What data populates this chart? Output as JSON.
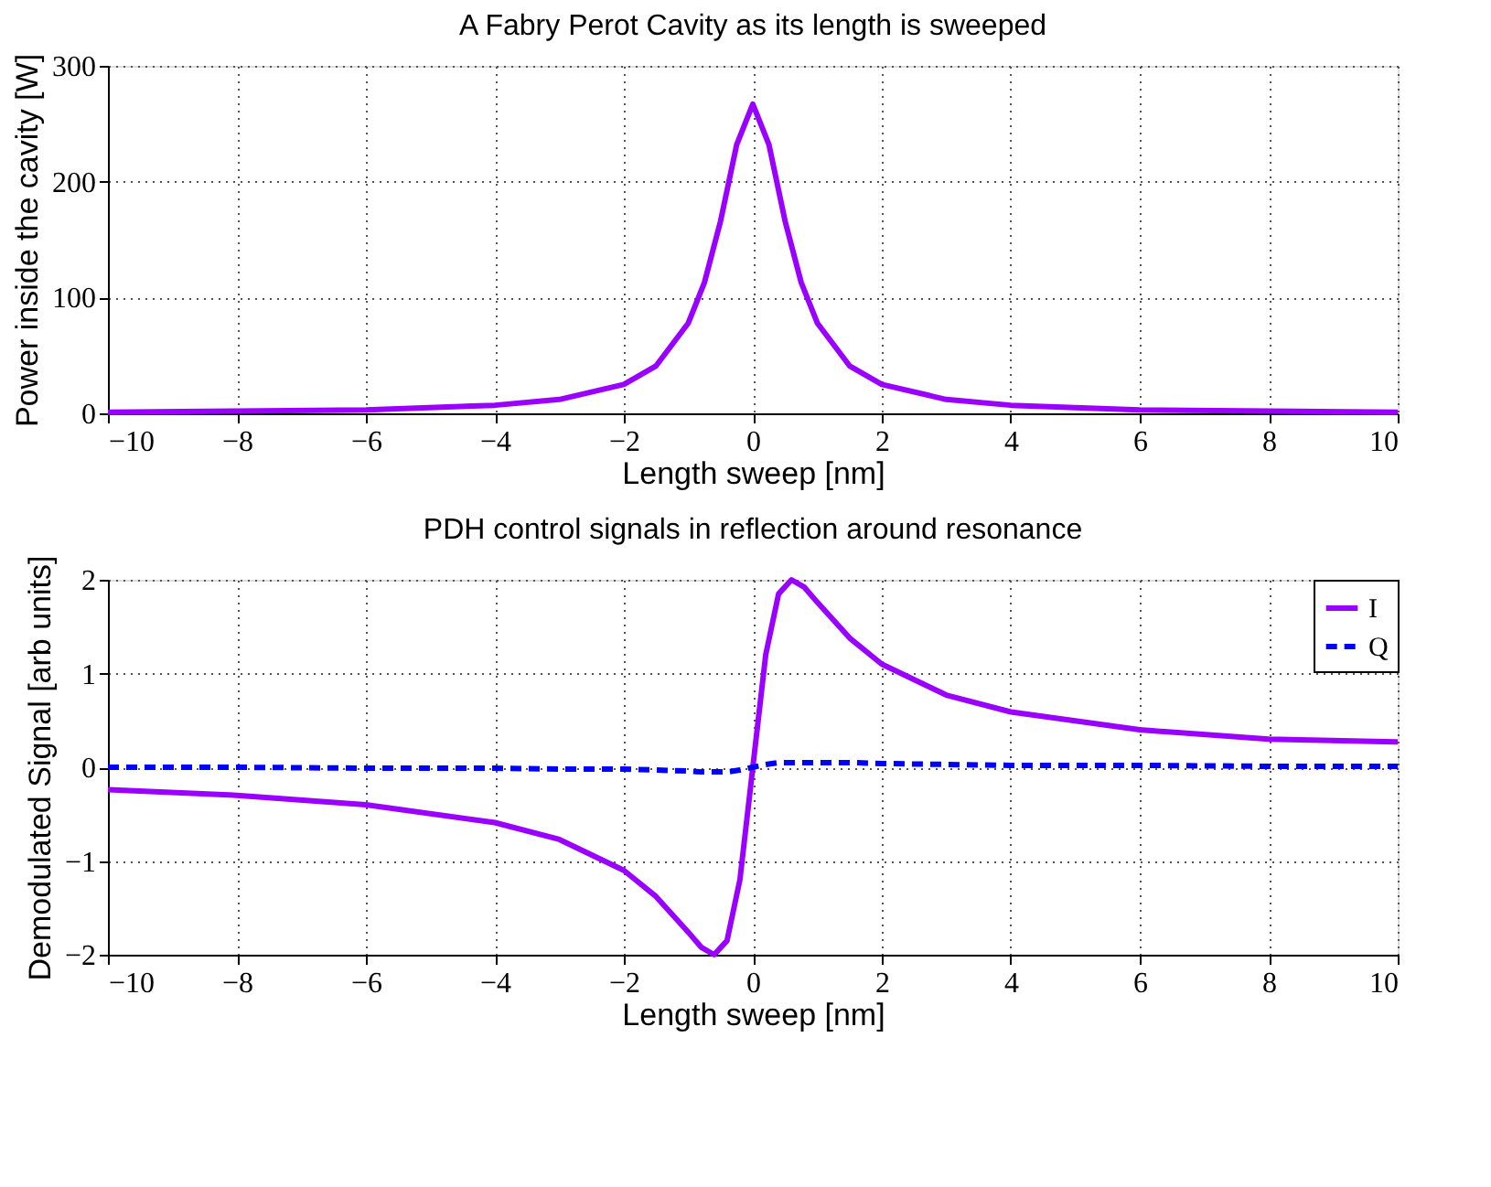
{
  "chart_data": [
    {
      "type": "line",
      "title": "A Fabry Perot Cavity as its length is sweeped",
      "xlabel": "Length sweep [nm]",
      "ylabel": "Power inside the cavity [W]",
      "x": [
        -10,
        -8,
        -6,
        -4,
        -3,
        -2,
        -1.5,
        -1,
        -0.75,
        -0.5,
        -0.25,
        0,
        0.25,
        0.5,
        0.75,
        1,
        1.5,
        2,
        3,
        4,
        6,
        8,
        10
      ],
      "series": [
        {
          "color": "#9900ff",
          "values": [
            1,
            2,
            3,
            7,
            12,
            25,
            41,
            78,
            113,
            166,
            232,
            267,
            232,
            166,
            113,
            78,
            41,
            25,
            12,
            7,
            3,
            2,
            1
          ]
        }
      ],
      "xlim": [
        -10,
        10
      ],
      "xticks": [
        -10,
        -8,
        -6,
        -4,
        -2,
        0,
        2,
        4,
        6,
        8,
        10
      ],
      "ylim": [
        0,
        300
      ],
      "yticks": [
        0,
        100,
        200,
        300
      ],
      "grid": true,
      "legend": false,
      "line_style": "solid",
      "marker": "none"
    },
    {
      "type": "line",
      "title": "PDH control signals in reflection around resonance",
      "xlabel": "Length sweep [nm]",
      "ylabel": "Demodulated Signal [arb units]",
      "x": [
        -10,
        -8,
        -6,
        -4,
        -3,
        -2,
        -1.5,
        -1,
        -0.8,
        -0.6,
        -0.4,
        -0.2,
        0,
        0.2,
        0.4,
        0.6,
        0.8,
        1,
        1.5,
        2,
        3,
        4,
        6,
        8,
        10
      ],
      "series": [
        {
          "name": "I",
          "color": "#9900ff",
          "line_style": "solid",
          "values": [
            -0.24,
            -0.3,
            -0.4,
            -0.59,
            -0.77,
            -1.1,
            -1.38,
            -1.76,
            -1.92,
            -2,
            -1.85,
            -1.2,
            0,
            1.2,
            1.85,
            2,
            1.92,
            1.76,
            1.38,
            1.1,
            0.77,
            0.59,
            0.4,
            0.3,
            0.27
          ]
        },
        {
          "name": "Q",
          "color": "#0000ff",
          "line_style": "dashed",
          "values": [
            0,
            0,
            -0.01,
            -0.01,
            -0.02,
            -0.02,
            -0.03,
            -0.04,
            -0.05,
            -0.05,
            -0.05,
            -0.03,
            0,
            0.03,
            0.05,
            0.05,
            0.05,
            0.05,
            0.05,
            0.04,
            0.03,
            0.02,
            0.02,
            0.01,
            0.01
          ]
        }
      ],
      "xlim": [
        -10,
        10
      ],
      "xticks": [
        -10,
        -8,
        -6,
        -4,
        -2,
        0,
        2,
        4,
        6,
        8,
        10
      ],
      "ylim": [
        -2,
        2
      ],
      "yticks": [
        -2,
        -1,
        0,
        1,
        2
      ],
      "grid": true,
      "legend": "top right",
      "marker": "none"
    }
  ]
}
